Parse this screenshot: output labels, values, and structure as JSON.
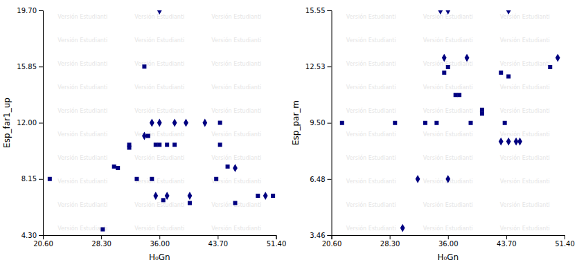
{
  "chart_data": [
    {
      "type": "scatter",
      "xlabel": "H₀Gn",
      "ylabel": "Esp_far1_up",
      "xlim": [
        20.6,
        51.4
      ],
      "ylim": [
        4.3,
        19.7
      ],
      "xticks": [
        {
          "value": 20.6,
          "label": "20.60"
        },
        {
          "value": 28.3,
          "label": "28.30"
        },
        {
          "value": 36.0,
          "label": "36.00"
        },
        {
          "value": 43.7,
          "label": "43.70"
        },
        {
          "value": 51.4,
          "label": "51.40"
        }
      ],
      "yticks": [
        {
          "value": 4.3,
          "label": "4.30"
        },
        8.15,
        {
          "value": 12.0,
          "label": "12.00"
        },
        15.85,
        {
          "value": 19.7,
          "label": "19.70"
        }
      ],
      "annotations": [
        {
          "text": "Versión Estudianti",
          "color": "#cccccc"
        }
      ],
      "series": [
        {
          "marker": "square",
          "color": "#000080",
          "x": [
            21.5,
            28.5,
            30.0,
            30.5,
            32.0,
            32.0,
            33.0,
            34.0,
            34.5,
            35.0,
            35.5,
            36.0,
            36.5,
            37.0,
            38.0,
            40.0,
            43.5,
            44.0,
            44.0,
            45.0,
            46.0,
            49.0,
            51.0
          ],
          "values": [
            8.15,
            4.7,
            9.0,
            8.9,
            10.5,
            10.3,
            8.15,
            15.85,
            11.1,
            8.15,
            10.5,
            10.5,
            6.7,
            10.5,
            10.5,
            6.5,
            8.15,
            10.5,
            12.0,
            9.0,
            6.5,
            7.0,
            7.0
          ]
        },
        {
          "marker": "diamond",
          "color": "#000080",
          "x": [
            36.0,
            35.0,
            36.0,
            38.0,
            39.5,
            42.0,
            34.0,
            46.0,
            35.5,
            37.0,
            40.0,
            50.0
          ],
          "values": [
            19.7,
            12.0,
            12.0,
            12.0,
            12.0,
            12.0,
            11.1,
            8.9,
            7.0,
            7.0,
            7.0,
            7.0
          ]
        }
      ]
    },
    {
      "type": "scatter",
      "xlabel": "H₀Gn",
      "ylabel": "Esp_par_m",
      "xlim": [
        20.6,
        51.4
      ],
      "ylim": [
        3.46,
        15.55
      ],
      "xticks": [
        {
          "value": 20.6,
          "label": "20.60"
        },
        {
          "value": 28.3,
          "label": "28.30"
        },
        {
          "value": 36.0,
          "label": "36.00"
        },
        {
          "value": 43.7,
          "label": "43.70"
        },
        {
          "value": 51.4,
          "label": "51.40"
        }
      ],
      "yticks": [
        3.46,
        6.48,
        {
          "value": 9.5,
          "label": "9.50"
        },
        12.53,
        15.55
      ],
      "annotations": [
        {
          "text": "Versión Estudianti",
          "color": "#cccccc"
        }
      ],
      "series": [
        {
          "marker": "square",
          "color": "#000080",
          "x": [
            22.0,
            29.0,
            33.0,
            34.5,
            35.5,
            36.0,
            37.0,
            37.5,
            39.0,
            40.5,
            40.5,
            43.0,
            44.0,
            49.5,
            43.5
          ],
          "values": [
            9.5,
            9.5,
            9.5,
            9.5,
            12.2,
            12.5,
            11.0,
            11.0,
            9.5,
            10.0,
            10.2,
            12.2,
            12.0,
            12.5,
            9.5
          ]
        },
        {
          "marker": "diamond",
          "color": "#000080",
          "x": [
            35.0,
            36.0,
            44.0,
            35.5,
            38.5,
            50.5,
            32.0,
            36.0,
            44.0,
            45.5,
            30.0,
            43.0,
            45.0
          ],
          "values": [
            15.55,
            15.55,
            15.55,
            13.0,
            13.0,
            13.0,
            6.48,
            6.48,
            8.5,
            8.5,
            3.85,
            8.5,
            8.5
          ]
        }
      ]
    }
  ]
}
